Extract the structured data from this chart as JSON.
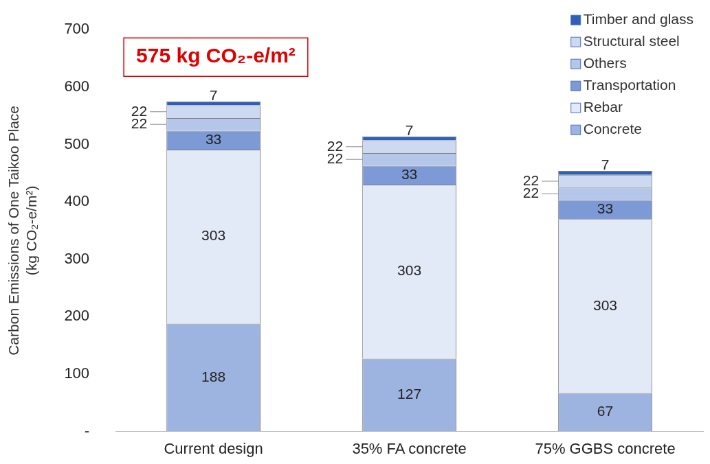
{
  "chart_data": {
    "type": "bar",
    "stacked": true,
    "ylabel": "Carbon Emissions of One Taikoo Place\n(kg CO₂-e/m²)",
    "categories": [
      "Current design",
      "35% FA concrete",
      "75% GGBS concrete"
    ],
    "series": [
      {
        "name": "Concrete",
        "color": "#9db3e0",
        "values": [
          188,
          127,
          67
        ]
      },
      {
        "name": "Rebar",
        "color": "#e3eaf7",
        "values": [
          303,
          303,
          303
        ]
      },
      {
        "name": "Transportation",
        "color": "#7d99d6",
        "values": [
          33,
          33,
          33
        ]
      },
      {
        "name": "Others",
        "color": "#b4c6ea",
        "values": [
          22,
          22,
          22
        ]
      },
      {
        "name": "Structural steel",
        "color": "#cdd9f1",
        "values": [
          22,
          22,
          22
        ]
      },
      {
        "name": "Timber and glass",
        "color": "#2f5fb8",
        "values": [
          7,
          7,
          7
        ]
      }
    ],
    "ylim": [
      0,
      700
    ],
    "yticks": [
      {
        "value": 0,
        "label": "-"
      },
      100,
      200,
      300,
      400,
      500,
      600,
      700
    ],
    "grid": false,
    "legend": "top right",
    "data_labels": true,
    "annotations": [
      "575 kg CO₂-e/m²"
    ]
  }
}
